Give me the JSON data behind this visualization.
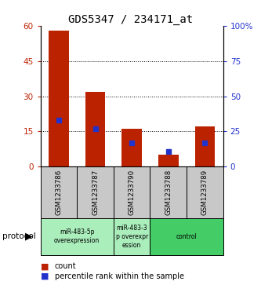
{
  "title": "GDS5347 / 234171_at",
  "samples": [
    "GSM1233786",
    "GSM1233787",
    "GSM1233790",
    "GSM1233788",
    "GSM1233789"
  ],
  "count_values": [
    58,
    32,
    16,
    5,
    17
  ],
  "percentile_values": [
    33,
    27,
    17,
    11,
    17
  ],
  "ylim_left": [
    0,
    60
  ],
  "ylim_right": [
    0,
    100
  ],
  "yticks_left": [
    0,
    15,
    30,
    45,
    60
  ],
  "yticks_right": [
    0,
    25,
    50,
    75,
    100
  ],
  "bar_color": "#BB2200",
  "dot_color": "#2233CC",
  "bg_color": "#FFFFFF",
  "plot_bg": "#FFFFFF",
  "protocol_groups": [
    {
      "label": "miR-483-5p\noverexpression",
      "start": 0,
      "end": 1,
      "color": "#AAEEBB"
    },
    {
      "label": "miR-483-3\np overexpr\nession",
      "start": 2,
      "end": 2,
      "color": "#AAEEBB"
    },
    {
      "label": "control",
      "start": 3,
      "end": 4,
      "color": "#44CC66"
    }
  ],
  "legend_count_label": "count",
  "legend_pct_label": "percentile rank within the sample",
  "protocol_label": "protocol",
  "left_ylabel_color": "#BB2200",
  "right_ylabel_color": "#2233CC",
  "title_fontsize": 10,
  "tick_fontsize": 7.5,
  "label_fontsize": 8,
  "bar_width": 0.55
}
